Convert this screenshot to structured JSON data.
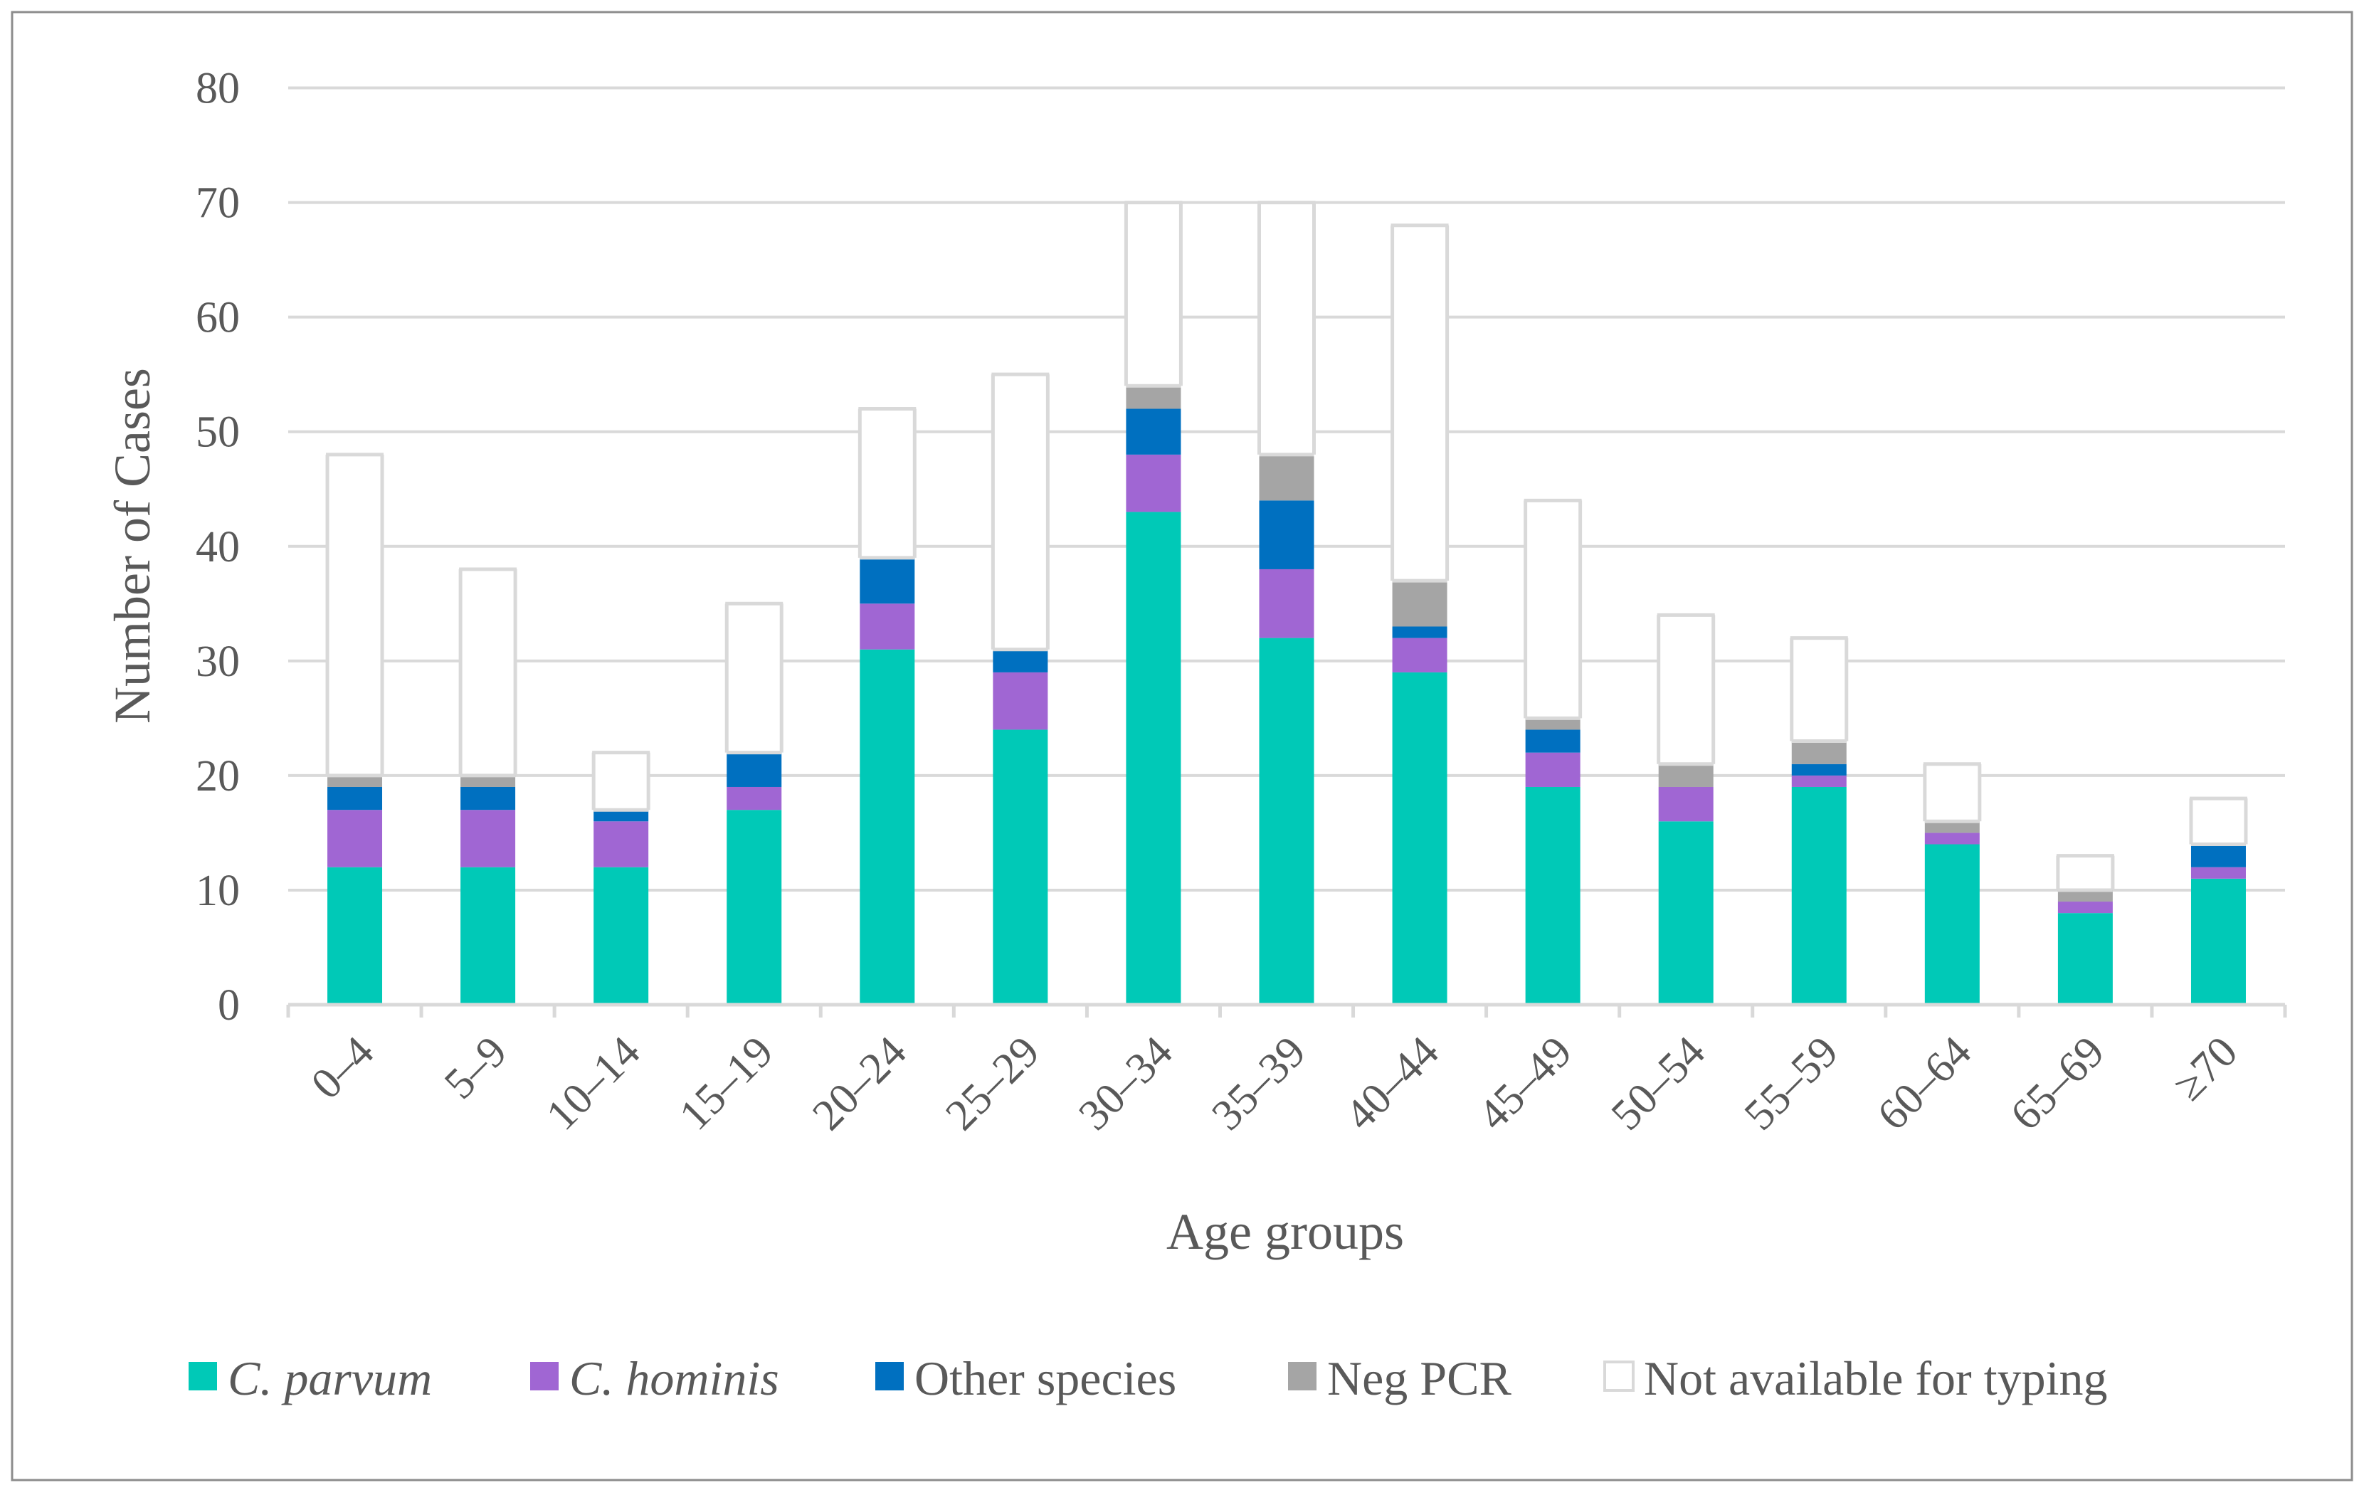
{
  "chart_data": {
    "type": "bar",
    "stacked": true,
    "title": "",
    "xlabel": "Age groups",
    "ylabel": "Number of Cases",
    "ylim": [
      0,
      80
    ],
    "yticks": [
      0,
      10,
      20,
      30,
      40,
      50,
      60,
      70,
      80
    ],
    "display_clip_value": 70,
    "grid": true,
    "legend_position": "bottom",
    "categories": [
      "0–4",
      "5–9",
      "10–14",
      "15–19",
      "20–24",
      "25–29",
      "30–34",
      "35–39",
      "40–44",
      "45–49",
      "50–54",
      "55–59",
      "60–64",
      "65–69",
      "≥70"
    ],
    "series": [
      {
        "name": "C. parvum",
        "italic": true,
        "color": "#00C9B7",
        "values": [
          12,
          12,
          12,
          17,
          31,
          24,
          43,
          32,
          29,
          19,
          16,
          19,
          14,
          8,
          11
        ]
      },
      {
        "name": "C. hominis",
        "italic": true,
        "color": "#A066D3",
        "values": [
          5,
          5,
          4,
          2,
          4,
          5,
          5,
          6,
          3,
          3,
          3,
          1,
          1,
          1,
          1
        ]
      },
      {
        "name": "Other species",
        "italic": false,
        "color": "#0070C0",
        "values": [
          2,
          2,
          1,
          3,
          4,
          2,
          4,
          6,
          1,
          2,
          0,
          1,
          0,
          0,
          2
        ]
      },
      {
        "name": "Neg PCR",
        "italic": false,
        "color": "#A5A5A5",
        "values": [
          1,
          1,
          0,
          0,
          0,
          0,
          2,
          4,
          4,
          1,
          2,
          2,
          1,
          1,
          0
        ]
      },
      {
        "name": "Not available for typing",
        "italic": false,
        "color": "#FFFFFF",
        "outline": "#D9D9D9",
        "values": [
          28,
          18,
          5,
          13,
          13,
          24,
          16,
          22,
          31,
          19,
          13,
          9,
          5,
          3,
          4
        ]
      }
    ]
  }
}
